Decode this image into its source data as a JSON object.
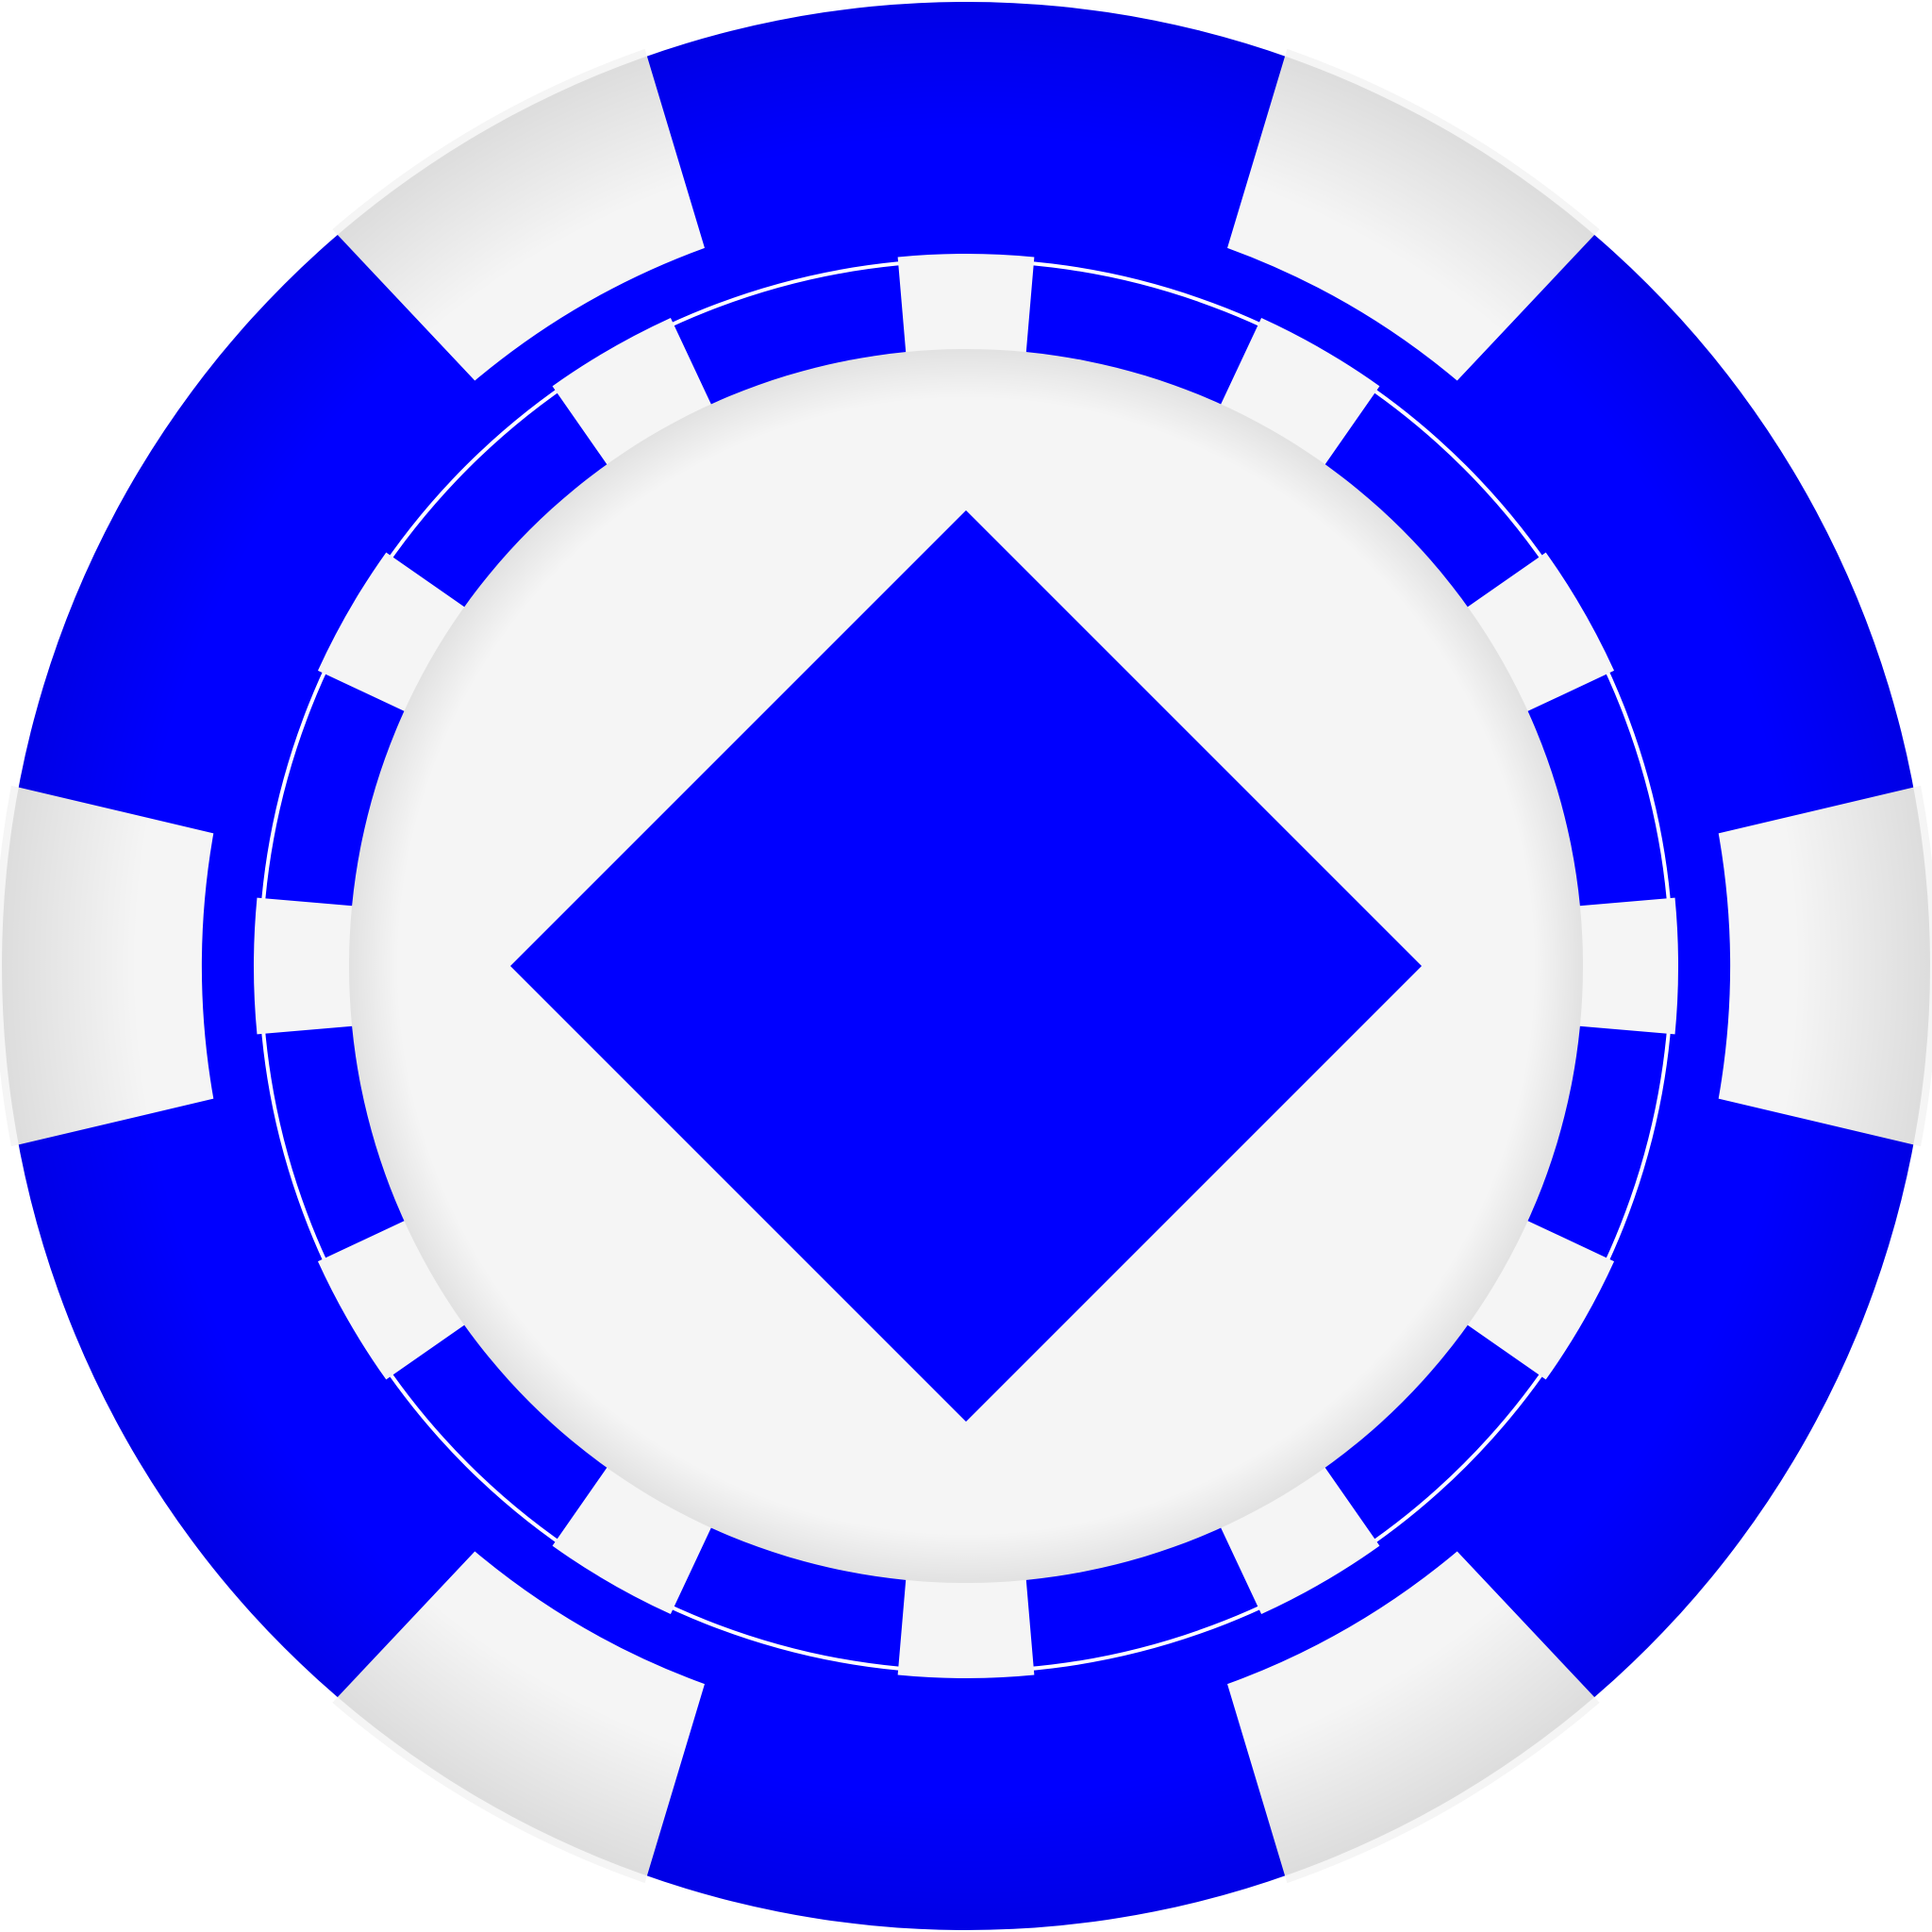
{
  "chip": {
    "primary_color": "#0000ff",
    "secondary_color": "#f5f5f5",
    "outer_stripe_count": 6,
    "inner_stripe_count": 12,
    "center_icon": "diamond-icon"
  }
}
